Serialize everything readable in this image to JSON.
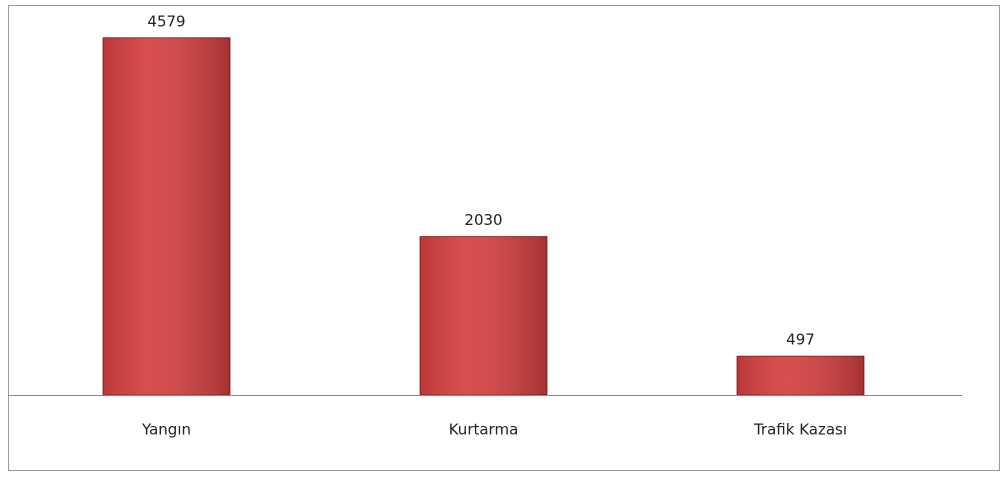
{
  "chart_data": {
    "type": "bar",
    "categories": [
      "Yangın",
      "Kurtarma",
      "Trafik Kazası"
    ],
    "values": [
      4579,
      2030,
      497
    ],
    "color": "#d43f3f",
    "ylim": [
      0,
      5000
    ]
  }
}
